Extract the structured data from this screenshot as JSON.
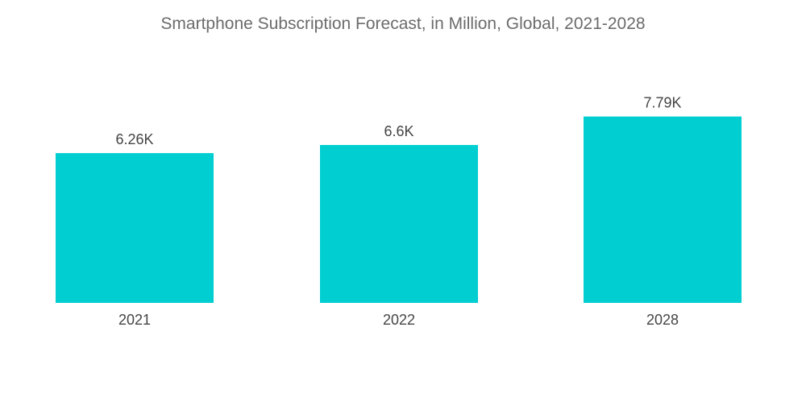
{
  "chart_data": {
    "type": "bar",
    "title": "Smartphone Subscription Forecast, in Million, Global, 2021-2028",
    "categories": [
      "2021",
      "2022",
      "2028"
    ],
    "values": [
      6.26,
      6.6,
      7.79
    ],
    "data_labels": [
      "6.26K",
      "6.6K",
      "7.79K"
    ],
    "xlabel": "",
    "ylabel": "",
    "ylim": [
      0,
      8.5
    ],
    "grid": false,
    "bar_color": "#00CED1"
  }
}
